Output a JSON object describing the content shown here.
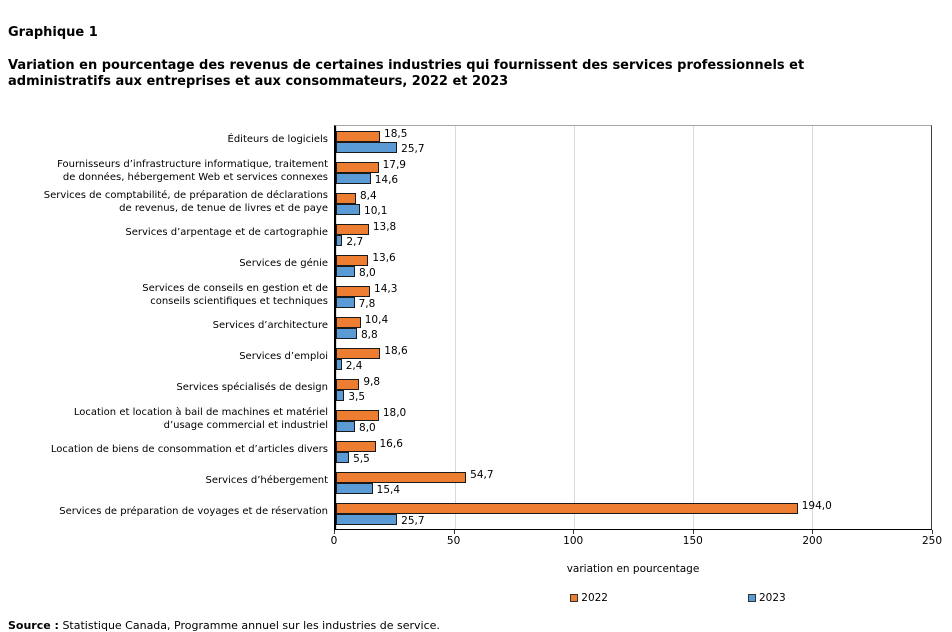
{
  "header": {
    "graph_label": "Graphique 1",
    "title": "Variation en pourcentage des revenus de certaines industries qui fournissent des services professionnels et\nadministratifs aux entreprises et aux consommateurs, 2022 et 2023"
  },
  "chart_data": {
    "type": "bar",
    "orientation": "horizontal",
    "title": "Variation en pourcentage des revenus de certaines industries qui fournissent des services professionnels et administratifs aux entreprises et aux consommateurs, 2022 et 2023",
    "categories": [
      "Éditeurs de logiciels",
      "Fournisseurs d’infrastructure informatique, traitement\nde données, hébergement Web et services connexes",
      "Services de comptabilité, de préparation de déclarations\nde revenus, de tenue de livres et de paye",
      "Services d’arpentage et de cartographie",
      "Services de génie",
      "Services de conseils en gestion et de\nconseils scientifiques et techniques",
      "Services d’architecture",
      "Services d’emploi",
      "Services spécialisés de design",
      "Location et location à bail de machines et matériel\nd’usage commercial et industriel",
      "Location de biens de consommation et d’articles divers",
      "Services d’hébergement",
      "Services de préparation de voyages et de réservation"
    ],
    "series": [
      {
        "name": "2022",
        "color": "#ED7D31",
        "values": [
          18.5,
          17.9,
          8.4,
          13.8,
          13.6,
          14.3,
          10.4,
          18.6,
          9.8,
          18.0,
          16.6,
          54.7,
          194.0
        ],
        "labels": [
          "18,5",
          "17,9",
          "8,4",
          "13,8",
          "13,6",
          "14,3",
          "10,4",
          "18,6",
          "9,8",
          "18,0",
          "16,6",
          "54,7",
          "194,0"
        ]
      },
      {
        "name": "2023",
        "color": "#5B9BD5",
        "values": [
          25.7,
          14.6,
          10.1,
          2.7,
          8.0,
          7.8,
          8.8,
          2.4,
          3.5,
          8.0,
          5.5,
          15.4,
          25.7
        ],
        "labels": [
          "25,7",
          "14,6",
          "10,1",
          "2,7",
          "8,0",
          "7,8",
          "8,8",
          "2,4",
          "3,5",
          "8,0",
          "5,5",
          "15,4",
          "25,7"
        ]
      }
    ],
    "xlabel": "variation en pourcentage",
    "xlim": [
      0,
      250
    ],
    "xticks": [
      0,
      50,
      100,
      150,
      200,
      250
    ],
    "grid": true,
    "gridline_color": "#D9D9D9",
    "legend_position": "bottom"
  },
  "footer": {
    "source_label": "Source :",
    "source_text": "Statistique Canada, Programme annuel sur les industries de service."
  }
}
